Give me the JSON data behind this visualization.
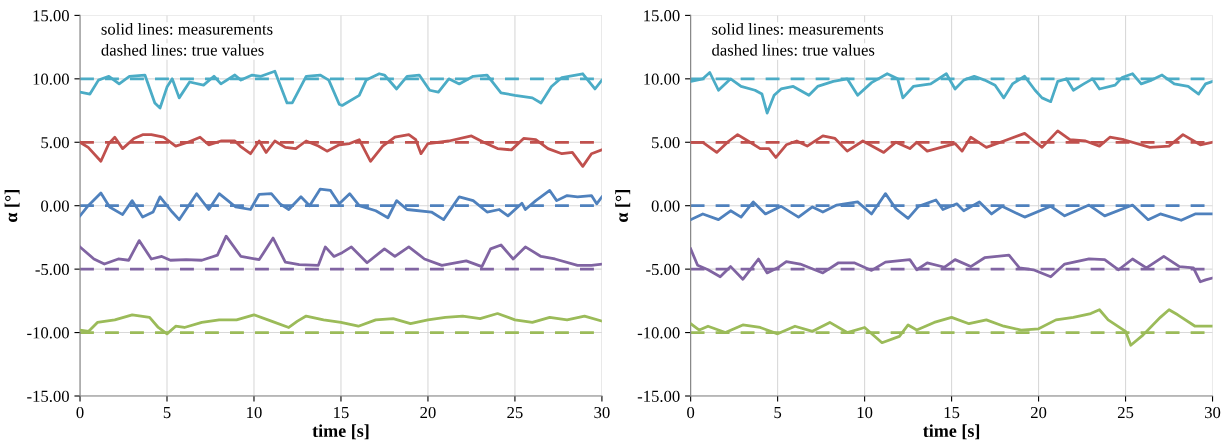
{
  "chart_data": [
    {
      "type": "line",
      "xlabel": "time [s]",
      "ylabel": "α [°]",
      "xlim": [
        0,
        30
      ],
      "xticks": [
        0,
        5,
        10,
        15,
        20,
        25,
        30
      ],
      "ylim": [
        -15,
        15
      ],
      "yticks": [
        {
          "value": 15,
          "label": "15.00"
        },
        {
          "value": 10,
          "label": "10.00"
        },
        {
          "value": 5,
          "label": "5.00"
        },
        {
          "value": 0,
          "label": "0.00"
        },
        {
          "value": -5,
          "label": "-5.00"
        },
        {
          "value": -10,
          "label": "-10.00"
        },
        {
          "value": -15,
          "label": "-15.00"
        }
      ],
      "grid": true,
      "line_style": "solid",
      "marker": "none",
      "annotations": [
        "solid lines: measurements",
        "dashed lines: true values"
      ],
      "ref_lines": [
        {
          "axis": "y",
          "value": 10,
          "color": "#4bacc6",
          "line_style": "dashed"
        },
        {
          "axis": "y",
          "value": 5,
          "color": "#c0504d",
          "line_style": "dashed"
        },
        {
          "axis": "y",
          "value": 0,
          "color": "#4f81bd",
          "line_style": "dashed"
        },
        {
          "axis": "y",
          "value": -5,
          "color": "#8064a2",
          "line_style": "dashed"
        },
        {
          "axis": "y",
          "value": -10,
          "color": "#9bbb59",
          "line_style": "dashed"
        }
      ],
      "series": [
        {
          "color": "#4bacc6",
          "x": [
            0,
            0.57,
            1.06,
            1.66,
            2.25,
            2.84,
            3.73,
            4.3,
            4.6,
            5.0,
            5.3,
            5.7,
            6.3,
            7.1,
            7.7,
            8.1,
            8.9,
            9.25,
            9.9,
            10.4,
            11.2,
            11.9,
            12.2,
            13.0,
            13.8,
            14.3,
            14.9,
            15.07,
            16.05,
            16.45,
            17.2,
            17.5,
            18.2,
            18.8,
            19.5,
            20.1,
            20.6,
            21.2,
            21.8,
            22.6,
            23.4,
            24.2,
            25.0,
            26.0,
            26.5,
            27.1,
            27.7,
            28.9,
            29.6,
            30
          ],
          "values": [
            8.95,
            8.8,
            9.9,
            10.2,
            9.6,
            10.2,
            10.3,
            8.1,
            7.7,
            9.35,
            10.0,
            8.5,
            9.75,
            9.5,
            10.2,
            9.6,
            10.3,
            9.9,
            10.3,
            10.2,
            10.6,
            8.1,
            8.1,
            10.2,
            10.3,
            9.9,
            8.0,
            7.9,
            8.7,
            9.9,
            10.4,
            10.3,
            9.2,
            10.2,
            10.3,
            9.1,
            8.95,
            10.0,
            9.6,
            10.2,
            10.3,
            8.9,
            8.7,
            8.5,
            8.1,
            9.4,
            10.1,
            10.4,
            9.2,
            9.9
          ]
        },
        {
          "color": "#c0504d",
          "x": [
            0,
            0.47,
            1.2,
            1.66,
            2.0,
            2.45,
            3.1,
            3.6,
            4.1,
            4.8,
            5.5,
            6.2,
            6.9,
            7.4,
            8.1,
            8.9,
            9.2,
            9.8,
            10.3,
            10.7,
            11.2,
            11.8,
            12.4,
            13.0,
            13.7,
            14.2,
            14.9,
            15.5,
            16.05,
            16.7,
            17.4,
            18.1,
            18.9,
            19.3,
            19.6,
            20.0,
            21.2,
            22.5,
            23.2,
            24.0,
            24.8,
            25.5,
            26.2,
            26.9,
            27.7,
            28.3,
            28.9,
            29.4,
            30
          ],
          "values": [
            5.0,
            4.6,
            3.5,
            4.9,
            5.4,
            4.5,
            5.3,
            5.6,
            5.6,
            5.4,
            4.7,
            5.0,
            5.4,
            4.8,
            5.1,
            5.1,
            4.7,
            4.1,
            5.1,
            4.2,
            5.1,
            4.6,
            4.5,
            5.1,
            4.7,
            4.3,
            4.8,
            4.9,
            5.2,
            3.5,
            4.7,
            5.4,
            5.6,
            5.2,
            4.1,
            4.9,
            5.1,
            5.5,
            5.0,
            4.5,
            4.4,
            5.3,
            5.2,
            4.5,
            4.1,
            4.2,
            3.1,
            4.1,
            4.4
          ]
        },
        {
          "color": "#4f81bd",
          "x": [
            0,
            0.47,
            1.2,
            1.7,
            2.45,
            3.0,
            3.6,
            4.2,
            4.6,
            5.3,
            5.7,
            6.7,
            7.4,
            8.0,
            8.5,
            8.95,
            9.8,
            10.3,
            11.0,
            11.5,
            12.0,
            12.7,
            13.2,
            13.8,
            14.4,
            14.9,
            15.5,
            16.05,
            17.0,
            17.7,
            18.2,
            18.8,
            20.2,
            20.9,
            21.8,
            22.6,
            23.4,
            24.1,
            24.6,
            25.4,
            25.6,
            26.2,
            27.0,
            27.4,
            28.0,
            28.6,
            29.4,
            29.7,
            30
          ],
          "values": [
            -0.8,
            0.0,
            1.0,
            -0.1,
            -0.7,
            0.4,
            -0.9,
            -0.5,
            0.7,
            -0.5,
            -1.1,
            0.95,
            -0.3,
            0.95,
            0.4,
            -0.1,
            -0.3,
            0.9,
            0.95,
            0.15,
            -0.3,
            0.7,
            0.0,
            1.3,
            1.2,
            0.15,
            0.95,
            0.0,
            -0.4,
            -0.95,
            0.4,
            -0.3,
            -0.5,
            -1.1,
            0.7,
            0.4,
            -0.5,
            -0.3,
            -0.8,
            0.2,
            -0.3,
            0.4,
            1.2,
            0.4,
            0.8,
            0.7,
            0.8,
            0.15,
            0.7
          ]
        },
        {
          "color": "#8064a2",
          "x": [
            0,
            0.8,
            1.4,
            2.2,
            2.8,
            3.4,
            4.1,
            4.7,
            5.2,
            6.1,
            7.0,
            7.9,
            8.4,
            9.25,
            10.3,
            11.1,
            11.8,
            12.6,
            13.7,
            14.1,
            14.6,
            15.07,
            15.6,
            16.5,
            17.5,
            18.1,
            18.9,
            19.8,
            20.8,
            22.2,
            23.1,
            23.6,
            24.2,
            24.9,
            25.6,
            26.5,
            27.3,
            28.6,
            29.4,
            30
          ],
          "values": [
            -3.25,
            -4.2,
            -4.6,
            -4.2,
            -4.3,
            -2.75,
            -4.2,
            -4.0,
            -4.3,
            -4.25,
            -4.3,
            -3.9,
            -2.4,
            -4.0,
            -4.25,
            -2.55,
            -4.45,
            -4.65,
            -4.7,
            -3.25,
            -4.0,
            -3.7,
            -3.25,
            -4.5,
            -3.4,
            -4.0,
            -3.25,
            -4.2,
            -4.7,
            -4.35,
            -4.8,
            -3.4,
            -3.1,
            -4.2,
            -3.25,
            -4.0,
            -4.2,
            -4.7,
            -4.7,
            -4.6
          ]
        },
        {
          "color": "#9bbb59",
          "x": [
            0,
            0.5,
            1,
            2,
            3,
            4,
            4.5,
            5,
            5.5,
            6,
            7,
            8,
            9,
            10,
            11,
            12,
            12.5,
            13,
            14,
            15,
            16,
            17,
            18,
            19,
            20,
            21,
            22,
            23,
            24,
            25,
            26,
            27,
            28,
            29,
            30
          ],
          "values": [
            -9.8,
            -9.9,
            -9.2,
            -9.0,
            -8.6,
            -8.8,
            -9.6,
            -10.1,
            -9.5,
            -9.6,
            -9.2,
            -9.0,
            -9.0,
            -8.6,
            -9.1,
            -9.6,
            -9.1,
            -8.7,
            -9.0,
            -9.2,
            -9.5,
            -9.0,
            -8.9,
            -9.3,
            -9.0,
            -8.8,
            -8.7,
            -8.9,
            -8.5,
            -9.0,
            -9.2,
            -8.8,
            -9.0,
            -8.7,
            -9.1
          ]
        }
      ]
    },
    {
      "type": "line",
      "xlabel": "time [s]",
      "ylabel": "α [°]",
      "xlim": [
        0,
        30
      ],
      "xticks": [
        0,
        5,
        10,
        15,
        20,
        25,
        30
      ],
      "ylim": [
        -15,
        15
      ],
      "yticks": [
        {
          "value": 15,
          "label": "15.00"
        },
        {
          "value": 10,
          "label": "10.00"
        },
        {
          "value": 5,
          "label": "5.00"
        },
        {
          "value": 0,
          "label": "0.00"
        },
        {
          "value": -5,
          "label": "-5.00"
        },
        {
          "value": -10,
          "label": "-10.00"
        },
        {
          "value": -15,
          "label": "-15.00"
        }
      ],
      "grid": true,
      "line_style": "solid",
      "marker": "none",
      "annotations": [
        "solid lines: measurements",
        "dashed lines: true values"
      ],
      "ref_lines": [
        {
          "axis": "y",
          "value": 10,
          "color": "#4bacc6",
          "line_style": "dashed"
        },
        {
          "axis": "y",
          "value": 5,
          "color": "#c0504d",
          "line_style": "dashed"
        },
        {
          "axis": "y",
          "value": 0,
          "color": "#4f81bd",
          "line_style": "dashed"
        },
        {
          "axis": "y",
          "value": -5,
          "color": "#8064a2",
          "line_style": "dashed"
        },
        {
          "axis": "y",
          "value": -10,
          "color": "#9bbb59",
          "line_style": "dashed"
        }
      ],
      "series": [
        {
          "color": "#4bacc6",
          "x": [
            0,
            0.7,
            1.1,
            1.6,
            2.3,
            2.9,
            3.7,
            4.1,
            4.4,
            4.8,
            5.2,
            5.9,
            6.8,
            7.3,
            8.2,
            9.0,
            9.6,
            10.4,
            11.3,
            11.9,
            12.2,
            12.8,
            13.8,
            14.7,
            15.2,
            15.7,
            16.3,
            16.9,
            17.5,
            18.0,
            18.5,
            19.2,
            19.8,
            20.2,
            20.7,
            21.1,
            21.6,
            22.0,
            22.6,
            23.1,
            23.5,
            24.4,
            24.8,
            25.4,
            25.9,
            26.5,
            27.1,
            27.8,
            28.6,
            29.2,
            29.6,
            30
          ],
          "values": [
            9.8,
            10.0,
            10.5,
            9.1,
            10.0,
            9.4,
            9.1,
            8.8,
            7.3,
            8.7,
            9.2,
            9.4,
            8.7,
            9.4,
            9.8,
            10.0,
            8.7,
            9.7,
            10.4,
            10.0,
            8.5,
            9.4,
            9.6,
            10.4,
            9.2,
            9.9,
            10.2,
            9.9,
            9.5,
            8.5,
            9.6,
            10.2,
            9.1,
            8.5,
            8.2,
            9.8,
            10.0,
            9.1,
            9.6,
            10.0,
            9.2,
            9.5,
            10.1,
            10.4,
            9.6,
            9.9,
            10.3,
            9.6,
            9.4,
            8.8,
            9.6,
            9.8
          ]
        },
        {
          "color": "#c0504d",
          "x": [
            0,
            0.7,
            1.5,
            2.2,
            2.7,
            3.3,
            4.0,
            4.5,
            4.9,
            5.5,
            6.1,
            6.7,
            7.6,
            8.3,
            9.0,
            9.9,
            11.1,
            11.8,
            12.6,
            13.0,
            13.6,
            14.4,
            15.2,
            15.6,
            16.1,
            17.0,
            18.2,
            19.2,
            20.2,
            21.1,
            21.8,
            22.7,
            23.5,
            24.1,
            24.9,
            26.4,
            27.5,
            28.3,
            29.3,
            30
          ],
          "values": [
            5.0,
            5.0,
            4.2,
            5.1,
            5.6,
            5.1,
            4.5,
            4.5,
            3.8,
            4.8,
            5.1,
            4.7,
            5.5,
            5.3,
            4.3,
            5.1,
            4.2,
            5.0,
            4.5,
            5.0,
            4.3,
            4.6,
            4.9,
            4.3,
            5.4,
            4.6,
            5.2,
            5.7,
            4.6,
            5.9,
            5.2,
            5.1,
            4.7,
            5.4,
            5.2,
            4.6,
            4.7,
            5.6,
            4.8,
            5.0
          ]
        },
        {
          "color": "#4f81bd",
          "x": [
            0,
            0.7,
            1.6,
            2.3,
            2.9,
            3.6,
            4.3,
            5.2,
            6.2,
            7.0,
            7.6,
            8.4,
            9.6,
            10.4,
            11.2,
            11.8,
            12.5,
            13.1,
            14.1,
            14.5,
            15.3,
            15.7,
            16.6,
            17.3,
            17.9,
            19.2,
            20.7,
            21.5,
            22.9,
            23.8,
            25.4,
            26.3,
            27.0,
            28.2,
            29.0,
            30
          ],
          "values": [
            -1.1,
            -0.65,
            -1.1,
            -0.4,
            -0.9,
            0.3,
            -0.65,
            -0.05,
            -0.9,
            -0.1,
            -0.5,
            0.05,
            0.3,
            -0.65,
            0.95,
            -0.25,
            -1.0,
            -0.05,
            0.45,
            -0.3,
            0.15,
            -0.4,
            0.3,
            -0.65,
            -0.05,
            -0.9,
            -0.05,
            -0.8,
            0.05,
            -0.8,
            0.05,
            -1.1,
            -0.65,
            -1.15,
            -0.65,
            -0.65
          ]
        },
        {
          "color": "#8064a2",
          "x": [
            0,
            0.4,
            1.0,
            1.7,
            2.3,
            3.0,
            3.4,
            3.9,
            4.4,
            5.0,
            5.5,
            6.3,
            7.6,
            8.5,
            9.4,
            10.4,
            11.2,
            12.6,
            13.0,
            13.6,
            14.6,
            15.2,
            16.1,
            16.9,
            18.3,
            18.9,
            19.7,
            20.7,
            21.5,
            22.9,
            23.8,
            24.6,
            25.4,
            26.2,
            27.2,
            28.1,
            28.9,
            29.3,
            29.6,
            30
          ],
          "values": [
            -3.4,
            -4.7,
            -5.05,
            -5.6,
            -4.8,
            -5.8,
            -5.1,
            -4.2,
            -5.3,
            -4.9,
            -4.4,
            -4.6,
            -5.3,
            -4.5,
            -4.5,
            -5.1,
            -4.45,
            -4.25,
            -5.05,
            -4.5,
            -4.85,
            -4.25,
            -4.8,
            -4.1,
            -3.9,
            -4.9,
            -5.05,
            -5.6,
            -4.6,
            -4.2,
            -4.25,
            -5.05,
            -4.2,
            -4.9,
            -4.0,
            -4.8,
            -4.9,
            -6.0,
            -5.85,
            -5.7
          ]
        },
        {
          "color": "#9bbb59",
          "x": [
            0,
            0.5,
            1,
            2,
            3,
            4,
            5,
            6,
            7,
            8,
            9,
            10,
            11,
            12,
            12.5,
            13,
            14,
            15,
            16,
            17,
            18,
            19,
            20,
            21,
            22,
            23,
            23.5,
            24,
            25,
            25.3,
            26,
            27,
            27.5,
            28,
            29,
            30
          ],
          "values": [
            -9.3,
            -9.8,
            -9.5,
            -10.0,
            -9.4,
            -9.6,
            -10.1,
            -9.5,
            -9.9,
            -9.2,
            -10.0,
            -9.6,
            -10.8,
            -10.3,
            -9.4,
            -9.8,
            -9.2,
            -8.8,
            -9.3,
            -9.0,
            -9.5,
            -9.8,
            -9.7,
            -9.0,
            -8.8,
            -8.5,
            -8.2,
            -9.0,
            -9.9,
            -11.0,
            -10.2,
            -8.8,
            -8.2,
            -8.6,
            -9.5,
            -9.5
          ]
        }
      ]
    }
  ]
}
